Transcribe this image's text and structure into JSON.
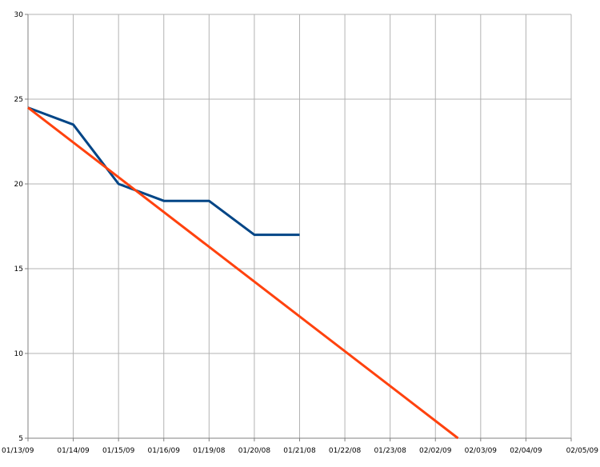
{
  "chart_data": {
    "type": "line",
    "categories": [
      "01/13/09",
      "01/14/09",
      "01/15/09",
      "01/16/09",
      "01/19/08",
      "01/20/08",
      "01/21/08",
      "01/22/08",
      "01/23/08",
      "02/02/09",
      "02/03/09",
      "02/04/09",
      "02/05/09"
    ],
    "ylim": [
      5,
      30
    ],
    "yticks": [
      5,
      10,
      15,
      20,
      25,
      30
    ],
    "grid": true,
    "series": [
      {
        "color": "#004586",
        "points": [
          [
            0,
            24.5
          ],
          [
            1,
            23.5
          ],
          [
            2,
            20.0
          ],
          [
            3,
            19.0
          ],
          [
            4,
            19.0
          ],
          [
            5,
            17.0
          ],
          [
            6,
            17.0
          ]
        ]
      },
      {
        "color": "#ff420e",
        "points": [
          [
            0,
            24.5
          ],
          [
            9.5,
            5.0
          ]
        ]
      }
    ]
  }
}
